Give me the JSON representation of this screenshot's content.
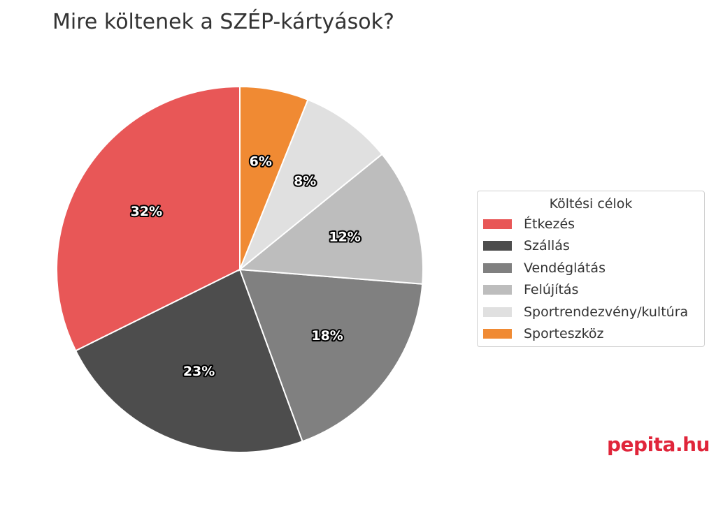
{
  "chart_data": {
    "type": "pie",
    "title": "Mire költenek a SZÉP-kártyások?",
    "legend_title": "Költési célok",
    "legend_position": "right",
    "slices": [
      {
        "label": "Étkezés",
        "value": 32,
        "display": "32%",
        "color": "#e85757"
      },
      {
        "label": "Szállás",
        "value": 23,
        "display": "23%",
        "color": "#4d4d4d"
      },
      {
        "label": "Vendéglátás",
        "value": 18,
        "display": "18%",
        "color": "#808080"
      },
      {
        "label": "Felújítás",
        "value": 12,
        "display": "12%",
        "color": "#bdbdbd"
      },
      {
        "label": "Sportrendezvény/kultúra",
        "value": 8,
        "display": "8%",
        "color": "#e0e0e0"
      },
      {
        "label": "Sporteszköz",
        "value": 6,
        "display": "6%",
        "color": "#f08a33"
      }
    ]
  },
  "watermark": "pepita.hu"
}
